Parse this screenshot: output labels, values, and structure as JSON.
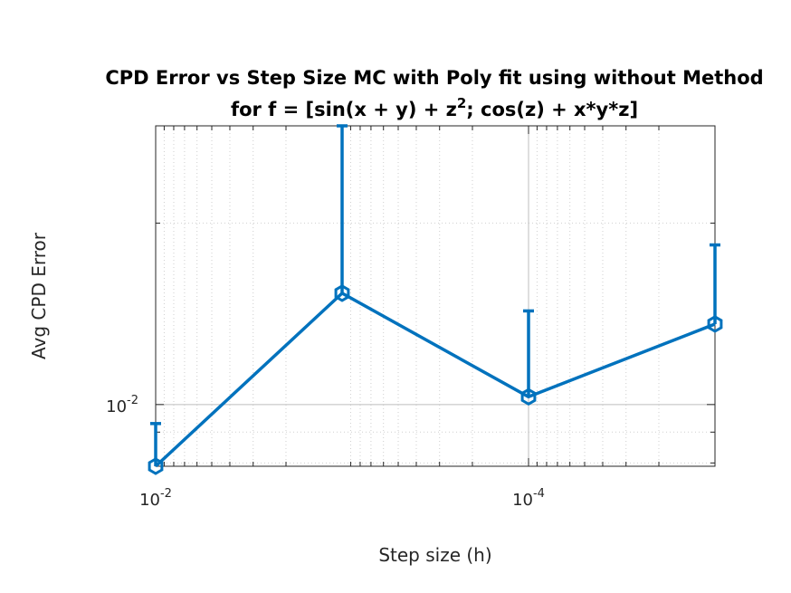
{
  "chart_data": {
    "type": "line",
    "title_line1": "CPD Error vs Step Size MC with Poly fit using without Method",
    "title_line2_pre": "for f = [sin(x + y) + z",
    "title_line2_sup": "2",
    "title_line2_post": "; cos(z) + x*y*z]",
    "xlabel": "Step size (h)",
    "ylabel": "Avg CPD Error",
    "xscale": "log",
    "yscale": "log",
    "x_reversed": true,
    "xlim": [
      0.01,
      1e-05
    ],
    "ylim": [
      0.0079,
      0.029
    ],
    "grid": true,
    "minor_grid": true,
    "x_ticks": [
      {
        "value": 0.01,
        "base": "10",
        "exp": "-2"
      },
      {
        "value": 0.0001,
        "base": "10",
        "exp": "-4"
      }
    ],
    "y_ticks": [
      {
        "value": 0.01,
        "base": "10",
        "exp": "-2"
      }
    ],
    "series": [
      {
        "name": "Avg CPD Error",
        "color": "#0072BD",
        "marker": "hexagon",
        "x": [
          0.01,
          0.001,
          0.0001,
          1e-05
        ],
        "y": [
          0.0079,
          0.0153,
          0.0103,
          0.0136
        ],
        "err_upper": [
          0.0093,
          0.029,
          0.0143,
          0.0184
        ]
      }
    ]
  }
}
